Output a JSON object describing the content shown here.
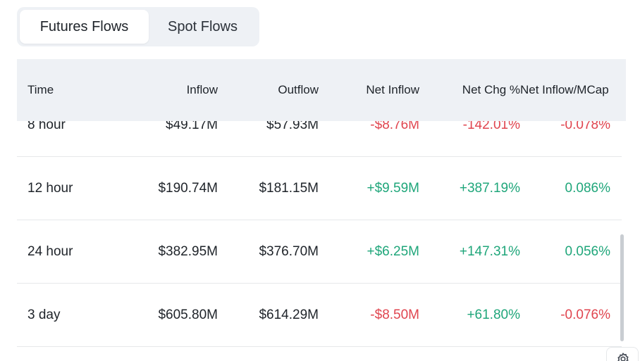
{
  "tabs": [
    {
      "label": "Futures Flows",
      "active": true
    },
    {
      "label": "Spot Flows",
      "active": false
    }
  ],
  "table": {
    "headers": {
      "time": "Time",
      "inflow": "Inflow",
      "outflow": "Outflow",
      "net_inflow": "Net Inflow",
      "net_chg": "Net Chg %",
      "net_mcap": "Net Inflow/MCap"
    },
    "rows": [
      {
        "time": "8 hour",
        "inflow": "$49.17M",
        "outflow": "$57.93M",
        "net_inflow": "-$8.76M",
        "net_chg": "-142.01%",
        "net_mcap": "-0.078%",
        "net_inflow_sign": "neg",
        "net_chg_sign": "neg",
        "net_mcap_sign": "neg"
      },
      {
        "time": "12 hour",
        "inflow": "$190.74M",
        "outflow": "$181.15M",
        "net_inflow": "+$9.59M",
        "net_chg": "+387.19%",
        "net_mcap": "0.086%",
        "net_inflow_sign": "pos",
        "net_chg_sign": "pos",
        "net_mcap_sign": "pos"
      },
      {
        "time": "24 hour",
        "inflow": "$382.95M",
        "outflow": "$376.70M",
        "net_inflow": "+$6.25M",
        "net_chg": "+147.31%",
        "net_mcap": "0.056%",
        "net_inflow_sign": "pos",
        "net_chg_sign": "pos",
        "net_mcap_sign": "pos"
      },
      {
        "time": "3 day",
        "inflow": "$605.80M",
        "outflow": "$614.29M",
        "net_inflow": "-$8.50M",
        "net_chg": "+61.80%",
        "net_mcap": "-0.076%",
        "net_inflow_sign": "neg",
        "net_chg_sign": "pos",
        "net_mcap_sign": "neg"
      }
    ]
  },
  "icons": {
    "settings": "gear-icon"
  },
  "colors": {
    "positive": "#1fa67a",
    "negative": "#e0454f",
    "header_bg": "#eef1f5"
  }
}
